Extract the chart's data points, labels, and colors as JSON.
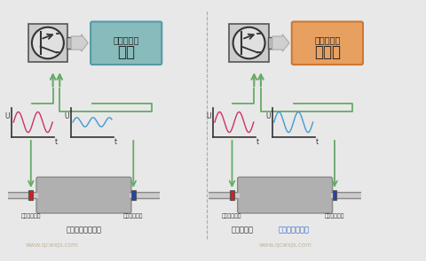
{
  "bg_color": "#e8e8e8",
  "left_box_color": "#7fbfbf",
  "right_box_color": "#e8a060",
  "left_title": "三元催化器",
  "left_subtitle": "正常",
  "right_title": "三元催化器",
  "right_subtitle": "不正常",
  "bottom_left_label": "正常的三元催化器",
  "bottom_right_label": "有故障的三",
  "bottom_right_label2": "汽车维修技术网",
  "sensor_left1": "上游氧传感器",
  "sensor_left2": "下游氧传感器",
  "sensor_right1": "上游氧传感器",
  "sensor_right2": "下游氧传感器",
  "wave_color_pink": "#cc3366",
  "wave_color_blue": "#4499cc",
  "arrow_color": "#66aa66",
  "line_color": "#66aa66",
  "watermark1": "www.qcwxjs.com",
  "watermark2": "www.qcwxjs.com"
}
